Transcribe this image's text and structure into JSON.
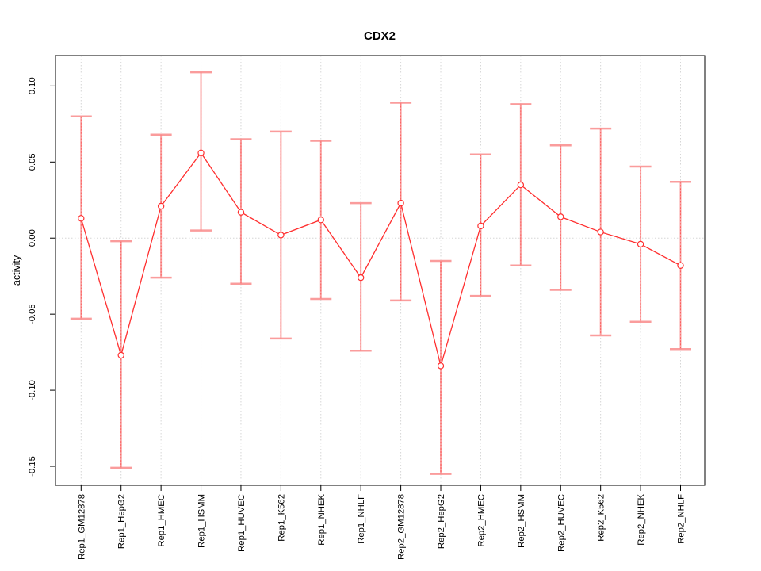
{
  "chart_data": {
    "type": "line",
    "title": "CDX2",
    "xlabel": "",
    "ylabel": "activity",
    "legend": "none",
    "categories": [
      "Rep1_GM12878",
      "Rep1_HepG2",
      "Rep1_HMEC",
      "Rep1_HSMM",
      "Rep1_HUVEC",
      "Rep1_K562",
      "Rep1_NHEK",
      "Rep1_NHLF",
      "Rep2_GM12878",
      "Rep2_HepG2",
      "Rep2_HMEC",
      "Rep2_HSMM",
      "Rep2_HUVEC",
      "Rep2_K562",
      "Rep2_NHEK",
      "Rep2_NHLF"
    ],
    "series": [
      {
        "name": "activity",
        "values": [
          0.013,
          -0.077,
          0.021,
          0.056,
          0.017,
          0.002,
          0.012,
          -0.026,
          0.023,
          -0.084,
          0.008,
          0.035,
          0.014,
          0.004,
          -0.004,
          -0.018
        ]
      }
    ],
    "error_upper": [
      0.08,
      -0.002,
      0.068,
      0.109,
      0.065,
      0.07,
      0.064,
      0.023,
      0.089,
      -0.015,
      0.055,
      0.088,
      0.061,
      0.072,
      0.047,
      0.037
    ],
    "error_lower": [
      -0.053,
      -0.151,
      -0.026,
      0.005,
      -0.03,
      -0.066,
      -0.04,
      -0.074,
      -0.041,
      -0.155,
      -0.038,
      -0.018,
      -0.034,
      -0.064,
      -0.055,
      -0.073
    ],
    "ytick_labels": [
      "0.10",
      "0.05",
      "0.00",
      "-0.05",
      "-0.10",
      "-0.15"
    ],
    "ytick_values": [
      0.1,
      0.05,
      0.0,
      -0.05,
      -0.1,
      -0.15
    ],
    "ylim": [
      -0.1625,
      0.12
    ],
    "grid": {
      "vertical_dotted_per_category": true,
      "horizontal_dotted_at_zero": true
    },
    "colors": {
      "line": "#ff2f2f",
      "point_fill": "#ffffff",
      "error_bar": "#f98b8b",
      "error_bar_dash": "#ff4a4a",
      "grid": "#d6d6d6",
      "axis": "#000000",
      "background": "#ffffff"
    }
  }
}
